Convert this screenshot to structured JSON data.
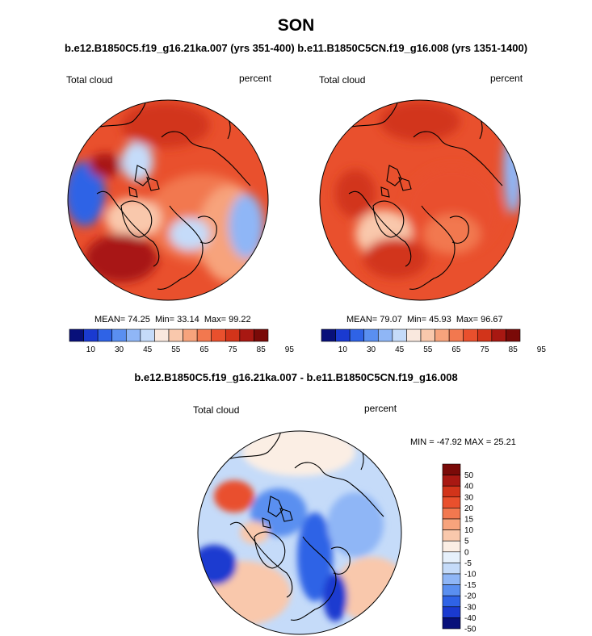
{
  "title": "SON",
  "subtitle_top": "b.e12.B1850C5.f19_g16.21ka.007 (yrs 351-400) b.e11.B1850C5CN.f19_g16.008 (yrs 1351-1400)",
  "subtitle_diff": "b.e12.B1850C5.f19_g16.21ka.007 - b.e11.B1850C5CN.f19_g16.008",
  "colors": {
    "abs_scale": [
      "#08107a",
      "#1a3ad0",
      "#2f63e6",
      "#5a8ff0",
      "#8fb6f6",
      "#c5dbf9",
      "#f9e8de",
      "#f9c8ac",
      "#f7a37c",
      "#f2784f",
      "#e9502d",
      "#d2341a",
      "#a81812",
      "#7a0a08"
    ],
    "diff_scale": [
      "#08107a",
      "#1a3ad0",
      "#2f63e6",
      "#5a8ff0",
      "#8fb6f6",
      "#c5dbf9",
      "#e6f0fb",
      "#fbeee4",
      "#f9c8ac",
      "#f7a37c",
      "#f2784f",
      "#e9502d",
      "#d2341a",
      "#a81812",
      "#7a0a08"
    ]
  },
  "chart_data": [
    {
      "type": "heatmap",
      "projection": "north-polar-stereographic",
      "left_label": "Total cloud",
      "right_label": "percent",
      "stats": {
        "mean_label": "MEAN=",
        "mean": "74.25",
        "min_label": "Min=",
        "min": "33.14",
        "max_label": "Max=",
        "max": "99.22"
      },
      "colorbar_ticks": [
        "10",
        "30",
        "45",
        "55",
        "65",
        "75",
        "85",
        "95"
      ]
    },
    {
      "type": "heatmap",
      "projection": "north-polar-stereographic",
      "left_label": "Total cloud",
      "right_label": "percent",
      "stats": {
        "mean_label": "MEAN=",
        "mean": "79.07",
        "min_label": "Min=",
        "min": "45.93",
        "max_label": "Max=",
        "max": "96.67"
      },
      "colorbar_ticks": [
        "10",
        "30",
        "45",
        "55",
        "65",
        "75",
        "85",
        "95"
      ]
    },
    {
      "type": "heatmap",
      "projection": "north-polar-stereographic",
      "left_label": "Total cloud",
      "right_label": "percent",
      "stats_text": "MIN = -47.92 MAX =  25.21",
      "colorbar_ticks": [
        "50",
        "40",
        "30",
        "20",
        "15",
        "10",
        "5",
        "0",
        "-5",
        "-10",
        "-15",
        "-20",
        "-30",
        "-40",
        "-50"
      ]
    }
  ]
}
